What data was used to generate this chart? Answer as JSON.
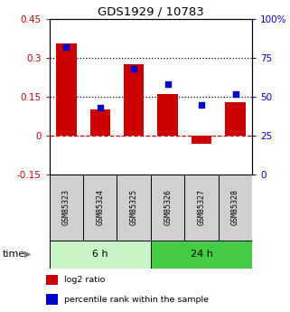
{
  "title": "GDS1929 / 10783",
  "samples": [
    "GSM85323",
    "GSM85324",
    "GSM85325",
    "GSM85326",
    "GSM85327",
    "GSM85328"
  ],
  "log2_ratio": [
    0.355,
    0.1,
    0.275,
    0.16,
    -0.03,
    0.13
  ],
  "percentile_rank": [
    82,
    43,
    68,
    58,
    45,
    52
  ],
  "bar_color": "#cc0000",
  "dot_color": "#0000cc",
  "ylim_left": [
    -0.15,
    0.45
  ],
  "ylim_right": [
    0,
    100
  ],
  "yticks_left": [
    -0.15,
    0,
    0.15,
    0.3,
    0.45
  ],
  "yticks_right": [
    0,
    25,
    50,
    75,
    100
  ],
  "yticklabels_left": [
    "-0.15",
    "0",
    "0.15",
    "0.3",
    "0.45"
  ],
  "yticklabels_right": [
    "0",
    "25",
    "50",
    "75",
    "100%"
  ],
  "hline_dotted": [
    0.3,
    0.15
  ],
  "hline_dashed_red": 0,
  "group_labels": [
    "6 h",
    "24 h"
  ],
  "group_ranges": [
    [
      0,
      3
    ],
    [
      3,
      6
    ]
  ],
  "group_color_light": "#c8f5c8",
  "group_color_dark": "#44cc44",
  "time_label": "time",
  "legend_items": [
    {
      "label": "log2 ratio",
      "color": "#cc0000"
    },
    {
      "label": "percentile rank within the sample",
      "color": "#0000cc"
    }
  ],
  "bg_color": "#ffffff",
  "sample_box_color": "#d0d0d0",
  "bar_width": 0.6
}
